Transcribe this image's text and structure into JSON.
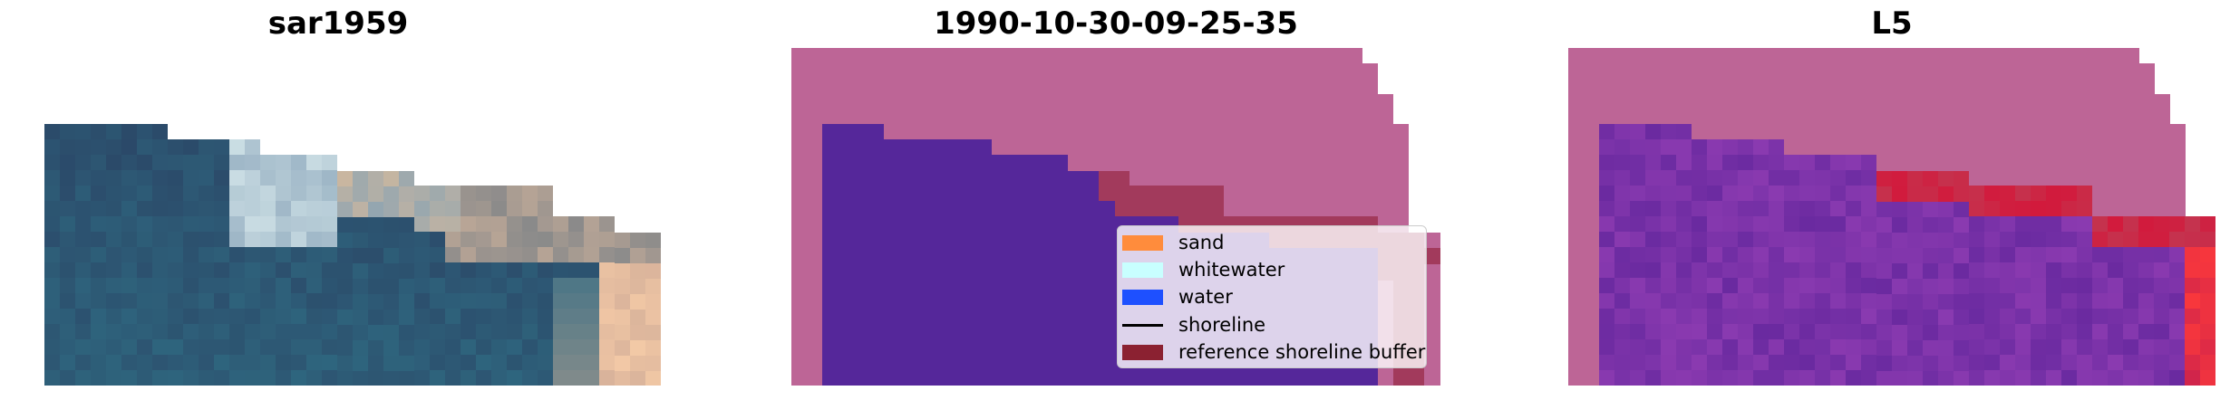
{
  "panels": {
    "left_title": "sar1959",
    "middle_title": "1990-10-30-09-25-35",
    "right_title": "L5"
  },
  "legend": {
    "items": [
      {
        "label": "sand",
        "color": "#ff8c3c",
        "kind": "patch"
      },
      {
        "label": "whitewater",
        "color": "#c8ffff",
        "kind": "patch"
      },
      {
        "label": "water",
        "color": "#1e50ff",
        "kind": "patch"
      },
      {
        "label": "shoreline",
        "color": "#000000",
        "kind": "line"
      },
      {
        "label": "reference shoreline buffer",
        "color": "#8b2131",
        "kind": "patch"
      }
    ]
  },
  "colors": {
    "classified_sand": "#bd6596",
    "classified_water": "#55279a",
    "reference_buffer": "#a23a5c",
    "probability_land": "#bd6596",
    "probability_water": "#6f2aa6",
    "probability_high": "#d21a3c"
  }
}
